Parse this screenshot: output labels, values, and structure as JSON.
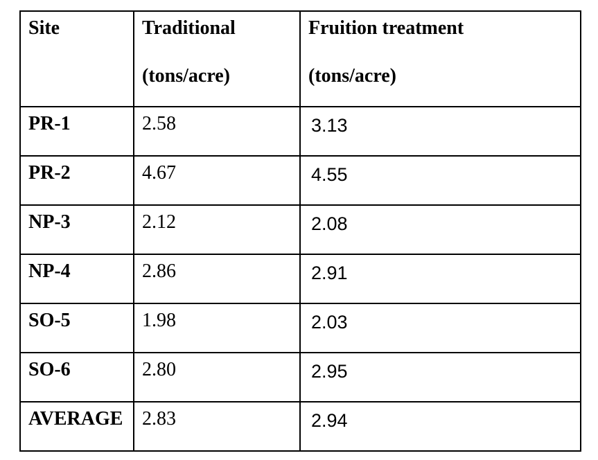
{
  "page": {
    "background": "#ffffff",
    "text_color": "#000000",
    "border_color": "#000000"
  },
  "table": {
    "headers": {
      "site": {
        "line1": "Site"
      },
      "traditional": {
        "line1": "Traditional",
        "line2": "(tons/acre)"
      },
      "fruition": {
        "line1": "Fruition treatment",
        "line2": "(tons/acre)"
      }
    },
    "rows": [
      {
        "site": "PR-1",
        "traditional": "2.58",
        "fruition": "3.13"
      },
      {
        "site": "PR-2",
        "traditional": "4.67",
        "fruition": "4.55"
      },
      {
        "site": "NP-3",
        "traditional": "2.12",
        "fruition": "2.08"
      },
      {
        "site": "NP-4",
        "traditional": "2.86",
        "fruition": "2.91"
      },
      {
        "site": "SO-5",
        "traditional": "1.98",
        "fruition": "2.03"
      },
      {
        "site": "SO-6",
        "traditional": "2.80",
        "fruition": "2.95"
      },
      {
        "site": "AVERAGE",
        "traditional": "2.83",
        "fruition": "2.94"
      }
    ]
  }
}
